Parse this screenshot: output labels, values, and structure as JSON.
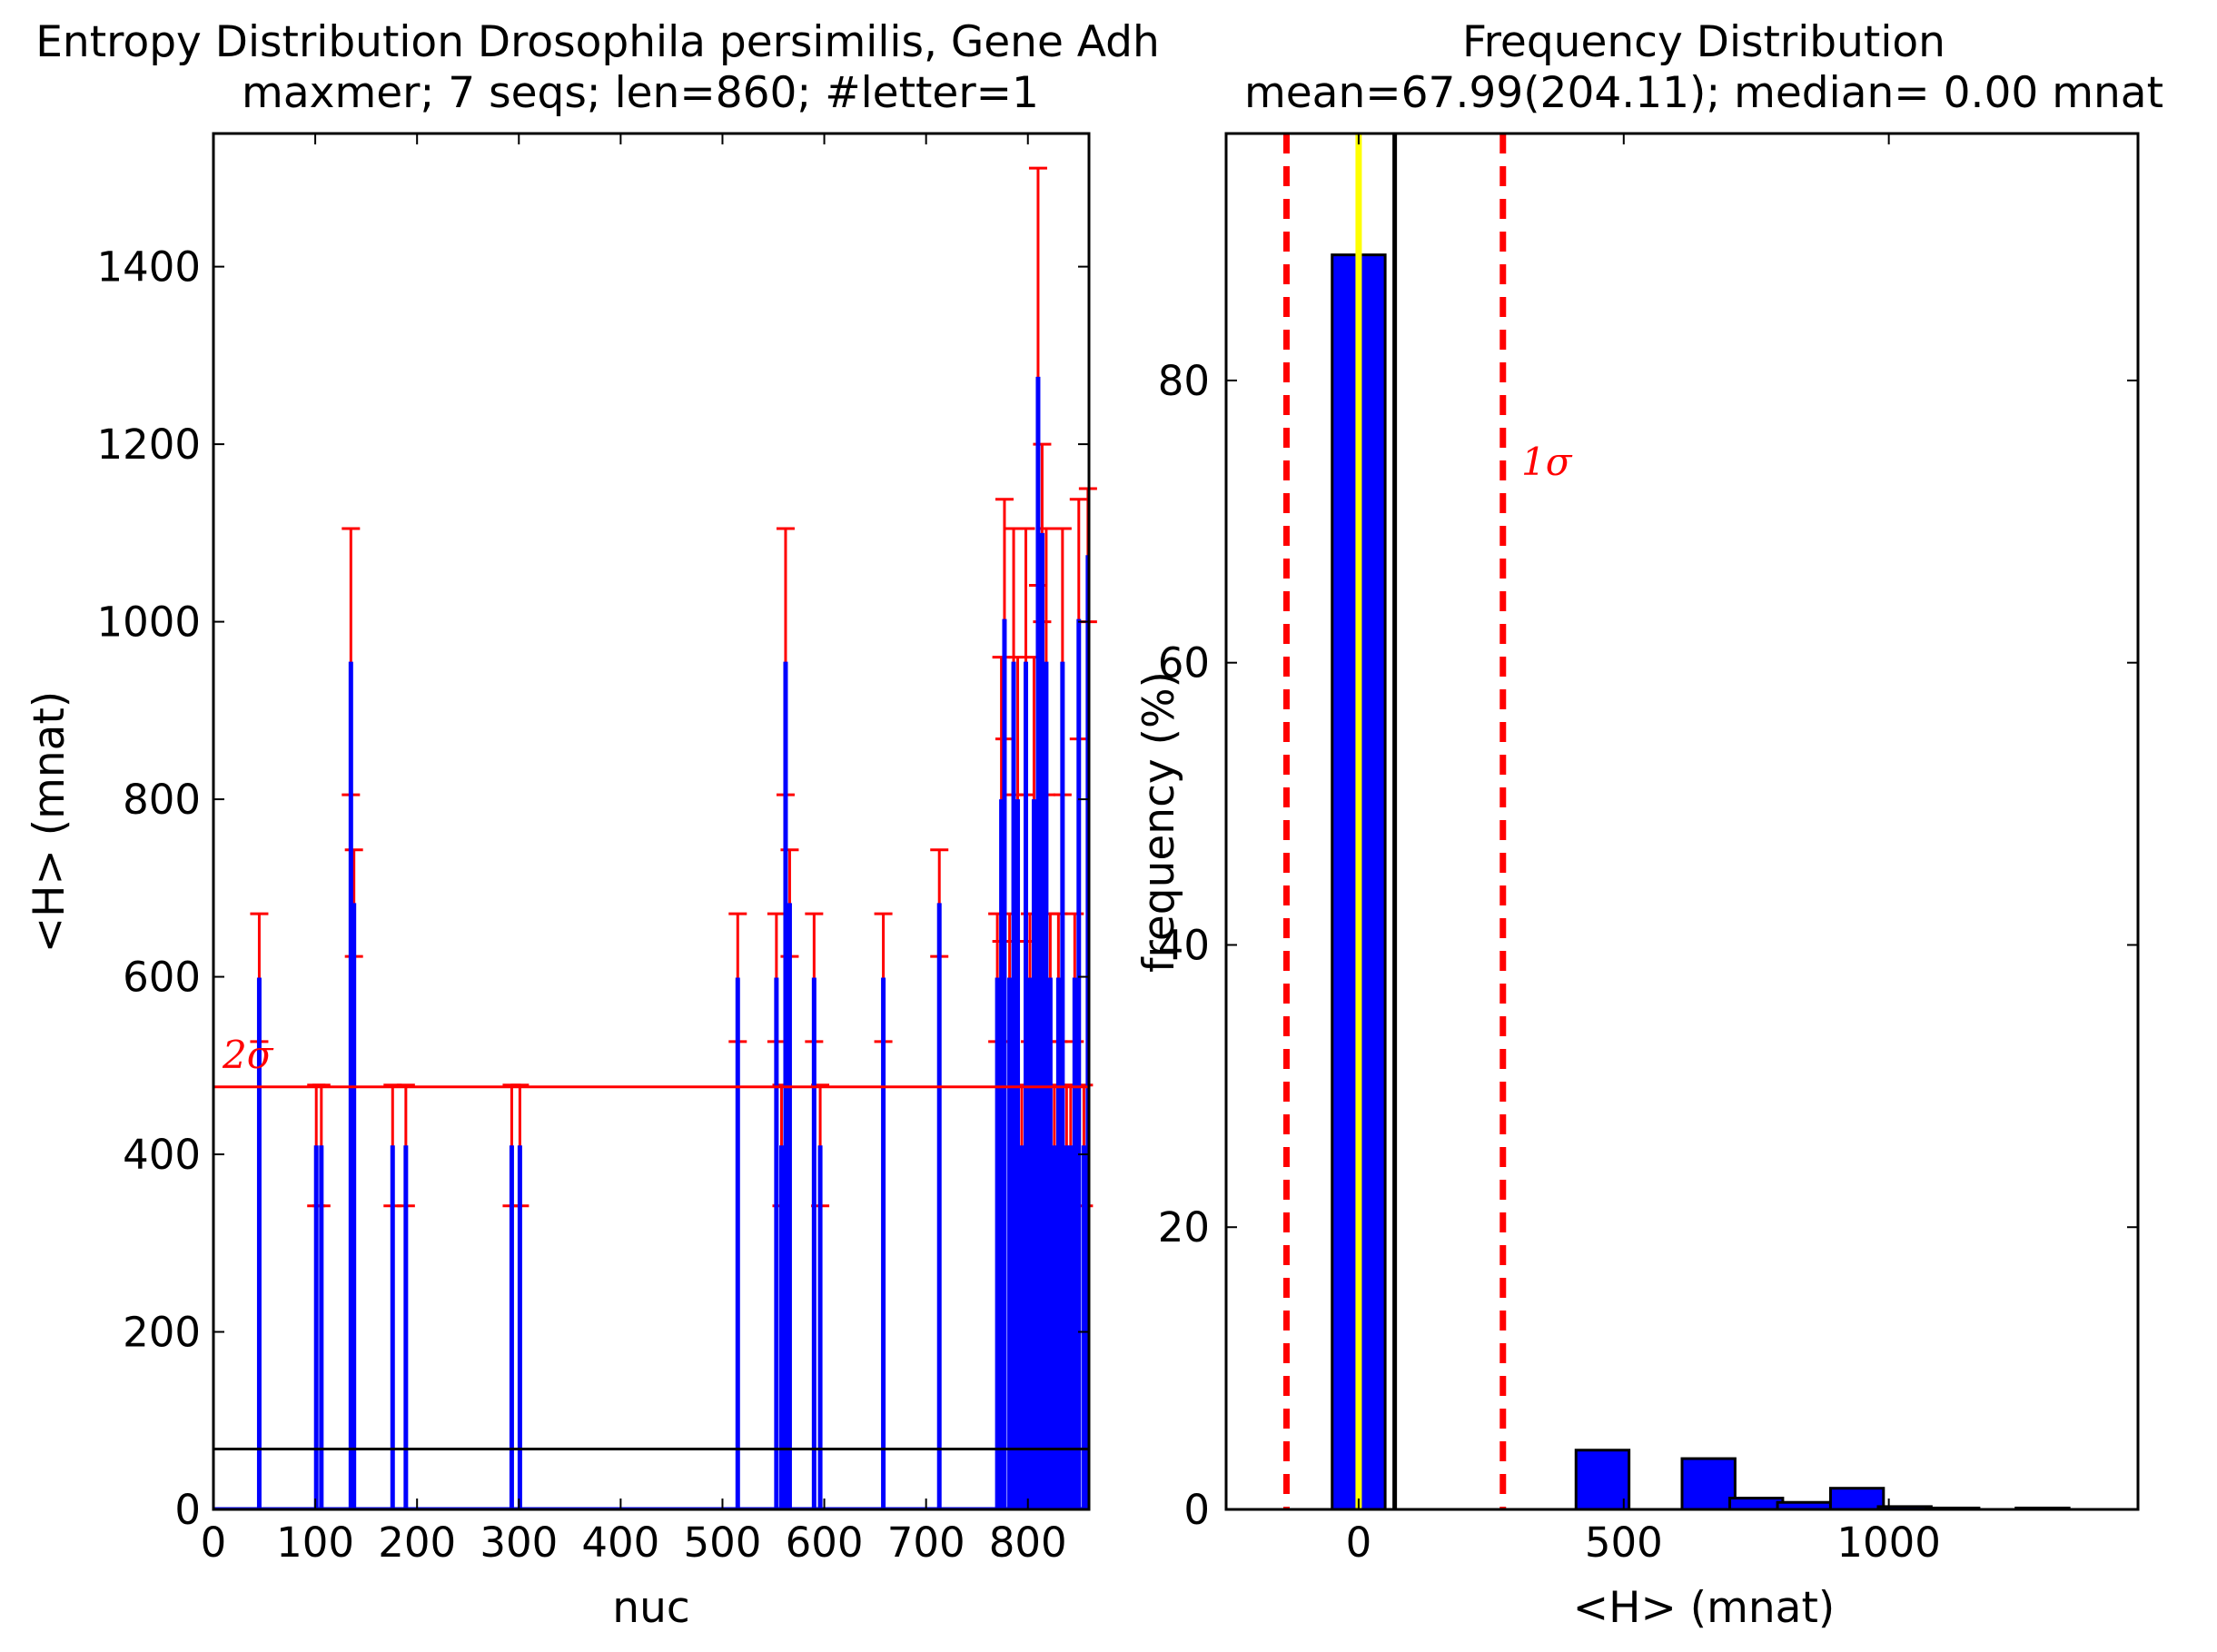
{
  "chart_data": [
    {
      "type": "bar",
      "title": "Entropy Distribution Drosophila persimilis, Gene Adh",
      "subtitle": "maxmer; 7 seqs; len=860; #letter=1",
      "xlabel": "nuc",
      "ylabel": "<H> (mnat)",
      "xlim": [
        0,
        860
      ],
      "ylim": [
        0,
        1550
      ],
      "xticks": [
        0,
        100,
        200,
        300,
        400,
        500,
        600,
        700,
        800
      ],
      "yticks": [
        0,
        200,
        400,
        600,
        800,
        1000,
        1200,
        1400
      ],
      "xtick_labels": [
        "0",
        "100",
        "200",
        "300",
        "400",
        "500",
        "600",
        "700",
        "800"
      ],
      "ytick_labels": [
        "0",
        "200",
        "400",
        "600",
        "800",
        "1000",
        "1200",
        "1400"
      ],
      "grid": false,
      "colors": {
        "bars": "#0000ff",
        "errorbars": "#ff0000",
        "threshold": "#ff0000",
        "mean_line": "#000000"
      },
      "mean_line": 67.99,
      "threshold_line": 476,
      "threshold_label": "2σ",
      "series": [
        {
          "x": [
            45,
            101,
            106,
            135,
            138,
            176,
            189,
            293,
            301,
            515,
            553,
            558,
            562,
            566,
            590,
            596,
            658,
            713,
            770,
            774,
            777,
            782,
            786,
            790,
            794,
            798,
            802,
            806,
            810,
            814,
            818,
            822,
            826,
            830,
            834,
            838,
            842,
            846,
            850,
            855,
            859
          ],
          "values": [
            599,
            410,
            410,
            955,
            683,
            410,
            410,
            410,
            410,
            599,
            599,
            410,
            955,
            683,
            599,
            410,
            599,
            683,
            599,
            800,
            1003,
            599,
            955,
            800,
            410,
            955,
            599,
            800,
            1276,
            1100,
            955,
            599,
            410,
            599,
            955,
            410,
            410,
            599,
            1003,
            410,
            1075
          ],
          "errors": [
            72,
            68,
            68,
            150,
            60,
            68,
            68,
            68,
            68,
            72,
            72,
            68,
            150,
            60,
            72,
            68,
            72,
            60,
            72,
            160,
            135,
            72,
            150,
            160,
            68,
            150,
            72,
            160,
            235,
            100,
            150,
            72,
            68,
            72,
            150,
            68,
            68,
            72,
            135,
            68,
            75
          ]
        }
      ]
    },
    {
      "type": "bar",
      "title": "Frequency Distribution",
      "subtitle": "mean=67.99(204.11); median= 0.00 mnat",
      "xlabel": "<H> (mnat)",
      "ylabel": "frequency (%)",
      "xlim": [
        -250,
        1470
      ],
      "ylim": [
        0,
        97.5
      ],
      "xticks": [
        0,
        500,
        1000
      ],
      "yticks": [
        0,
        20,
        40,
        60,
        80
      ],
      "xtick_labels": [
        "0",
        "500",
        "1000"
      ],
      "ytick_labels": [
        "0",
        "20",
        "40",
        "60",
        "80"
      ],
      "grid": false,
      "colors": {
        "bars": "#0000ff",
        "median": "#ffff00",
        "mean": "#000000",
        "sigma": "#ff0000"
      },
      "bin_width": 100,
      "bin_centers": [
        0,
        460,
        660,
        750,
        840,
        940,
        1030,
        1120,
        1290
      ],
      "values": [
        88.9,
        4.2,
        3.6,
        0.8,
        0.5,
        1.5,
        0.2,
        0.1,
        0.1
      ],
      "median": 0.0,
      "mean": 67.99,
      "sigma_lines": [
        -136.12,
        272.1
      ],
      "sigma_label": "1σ"
    }
  ]
}
